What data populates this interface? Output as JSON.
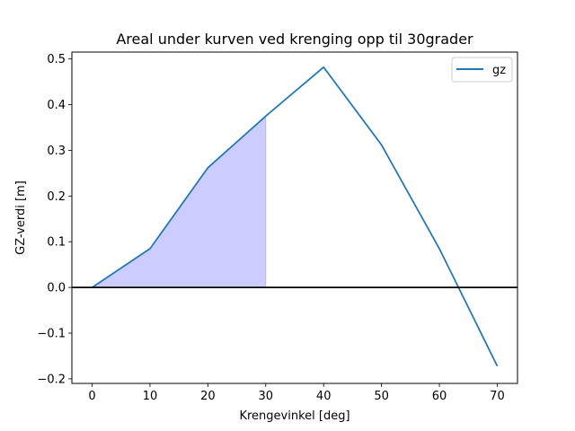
{
  "chart_data": {
    "type": "line",
    "title": "Areal under kurven ved krenging opp til 30grader",
    "xlabel": "Krengevinkel [deg]",
    "ylabel": "GZ-verdi [m]",
    "xlim": [
      -3.5,
      73.5
    ],
    "ylim": [
      -0.21,
      0.515
    ],
    "xticks": [
      0,
      10,
      20,
      30,
      40,
      50,
      60,
      70
    ],
    "xtick_labels": [
      "0",
      "10",
      "20",
      "30",
      "40",
      "50",
      "60",
      "70"
    ],
    "yticks": [
      -0.2,
      -0.1,
      0.0,
      0.1,
      0.2,
      0.3,
      0.4,
      0.5
    ],
    "ytick_labels": [
      "−0.2",
      "−0.1",
      "0.0",
      "0.1",
      "0.2",
      "0.3",
      "0.4",
      "0.5"
    ],
    "grid": false,
    "legend_position": "top-right",
    "series": [
      {
        "name": "gz",
        "color": "#1f77b4",
        "x": [
          0,
          10,
          20,
          30,
          40,
          50,
          60,
          70
        ],
        "y": [
          0.0,
          0.085,
          0.262,
          0.375,
          0.482,
          0.312,
          0.085,
          -0.172
        ]
      }
    ],
    "shaded_area": {
      "x_from": 0,
      "x_to": 30,
      "color": "#0000ff",
      "alpha": 0.2
    },
    "reference_line": {
      "y": 0,
      "color": "#000000"
    }
  }
}
